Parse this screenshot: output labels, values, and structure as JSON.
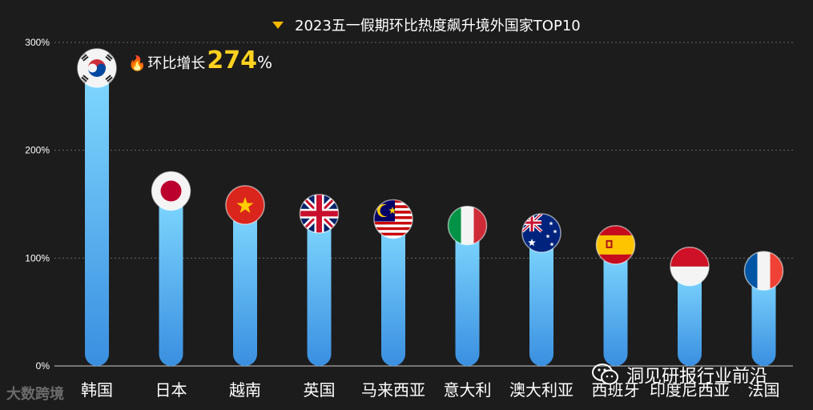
{
  "title": "2023五一假期环比热度飙升境外国家TOP10",
  "annotation": {
    "icon": "fire-icon",
    "prefix": "环比增长",
    "value": "274",
    "suffix": "%"
  },
  "watermarks": {
    "left": "大数跨境",
    "right": "洞见研报行业前沿"
  },
  "chart_data": {
    "type": "bar",
    "categories": [
      "韩国",
      "日本",
      "越南",
      "英国",
      "马来西亚",
      "意大利",
      "澳大利亚",
      "西班牙",
      "印度尼西亚",
      "法国"
    ],
    "values": [
      274,
      160,
      147,
      139,
      134,
      128,
      121,
      110,
      90,
      86
    ],
    "ylim": [
      0,
      300
    ],
    "yticks": [
      0,
      100,
      200,
      300
    ],
    "ytick_labels": [
      "0%",
      "100%",
      "200%",
      "300%"
    ],
    "grid": true,
    "flags": [
      "korea-flag-icon",
      "japan-flag-icon",
      "vietnam-flag-icon",
      "uk-flag-icon",
      "malaysia-flag-icon",
      "italy-flag-icon",
      "australia-flag-icon",
      "spain-flag-icon",
      "indonesia-flag-icon",
      "france-flag-icon"
    ],
    "colors": {
      "bar_top": "#7fd8ff",
      "bar_bottom": "#3a8fe0",
      "grid": "#666666",
      "axis_text": "#ffffff"
    }
  }
}
